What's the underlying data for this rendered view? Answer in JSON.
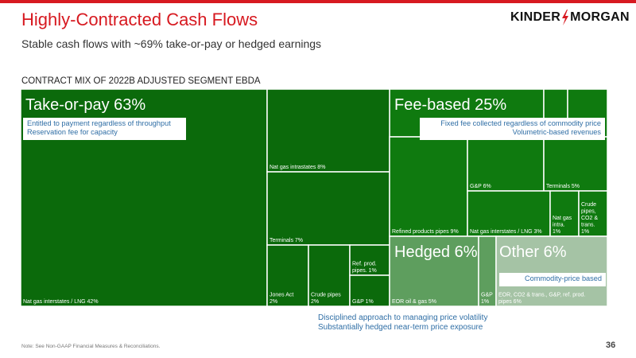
{
  "header": {
    "title": "Highly-Contracted Cash Flows",
    "subtitle": "Stable cash flows with ~69% take-or-pay or hedged earnings",
    "logo_left": "KINDER",
    "logo_right": "MORGAN"
  },
  "chart_data": {
    "type": "treemap",
    "title": "CONTRACT MIX OF 2022B ADJUSTED SEGMENT EBDA",
    "groups": [
      {
        "name": "Take-or-pay 63%",
        "color": "#0b6a0b",
        "notes": [
          "Entitled to payment regardless of throughput",
          "Reservation fee for capacity"
        ],
        "items": [
          {
            "label": "Nat gas interstates / LNG 42%",
            "value": 42
          },
          {
            "label": "Nat gas intrastates 8%",
            "value": 8
          },
          {
            "label": "Terminals 7%",
            "value": 7
          },
          {
            "label": "Jones Act 2%",
            "value": 2
          },
          {
            "label": "Crude pipes 2%",
            "value": 2
          },
          {
            "label": "Ref. prod. pipes. 1%",
            "value": 1
          },
          {
            "label": "G&P 1%",
            "value": 1
          }
        ]
      },
      {
        "name": "Fee-based 25%",
        "color": "#0f7a0f",
        "notes": [
          "Fixed fee collected regardless of commodity price",
          "Volumetric-based revenues"
        ],
        "items": [
          {
            "label": "Refined products pipes 9%",
            "value": 9
          },
          {
            "label": "G&P 6%",
            "value": 6
          },
          {
            "label": "Terminals 5%",
            "value": 5
          },
          {
            "label": "Nat gas interstates / LNG 3%",
            "value": 3
          },
          {
            "label": "Nat gas intra. 1%",
            "value": 1
          },
          {
            "label": "Crude pipes, CO2 & trans. 1%",
            "value": 1
          }
        ]
      },
      {
        "name": "Hedged 6%",
        "color": "#5e9e5e",
        "notes": [
          "Disciplined approach to managing price volatility",
          "Substantially hedged near-term price exposure"
        ],
        "items": [
          {
            "label": "EOR oil & gas 5%",
            "value": 5
          },
          {
            "label": "G&P 1%",
            "value": 1
          }
        ]
      },
      {
        "name": "Other 6%",
        "color": "#a5c3a5",
        "notes": [
          "Commodity-price based"
        ],
        "items": [
          {
            "label": "EOR, CO2 & trans., G&P, ref. prod. pipes 6%",
            "value": 6
          }
        ]
      }
    ]
  },
  "footer": {
    "note": "Note: See Non-GAAP Financial Measures & Reconciliations.",
    "page": "36"
  }
}
